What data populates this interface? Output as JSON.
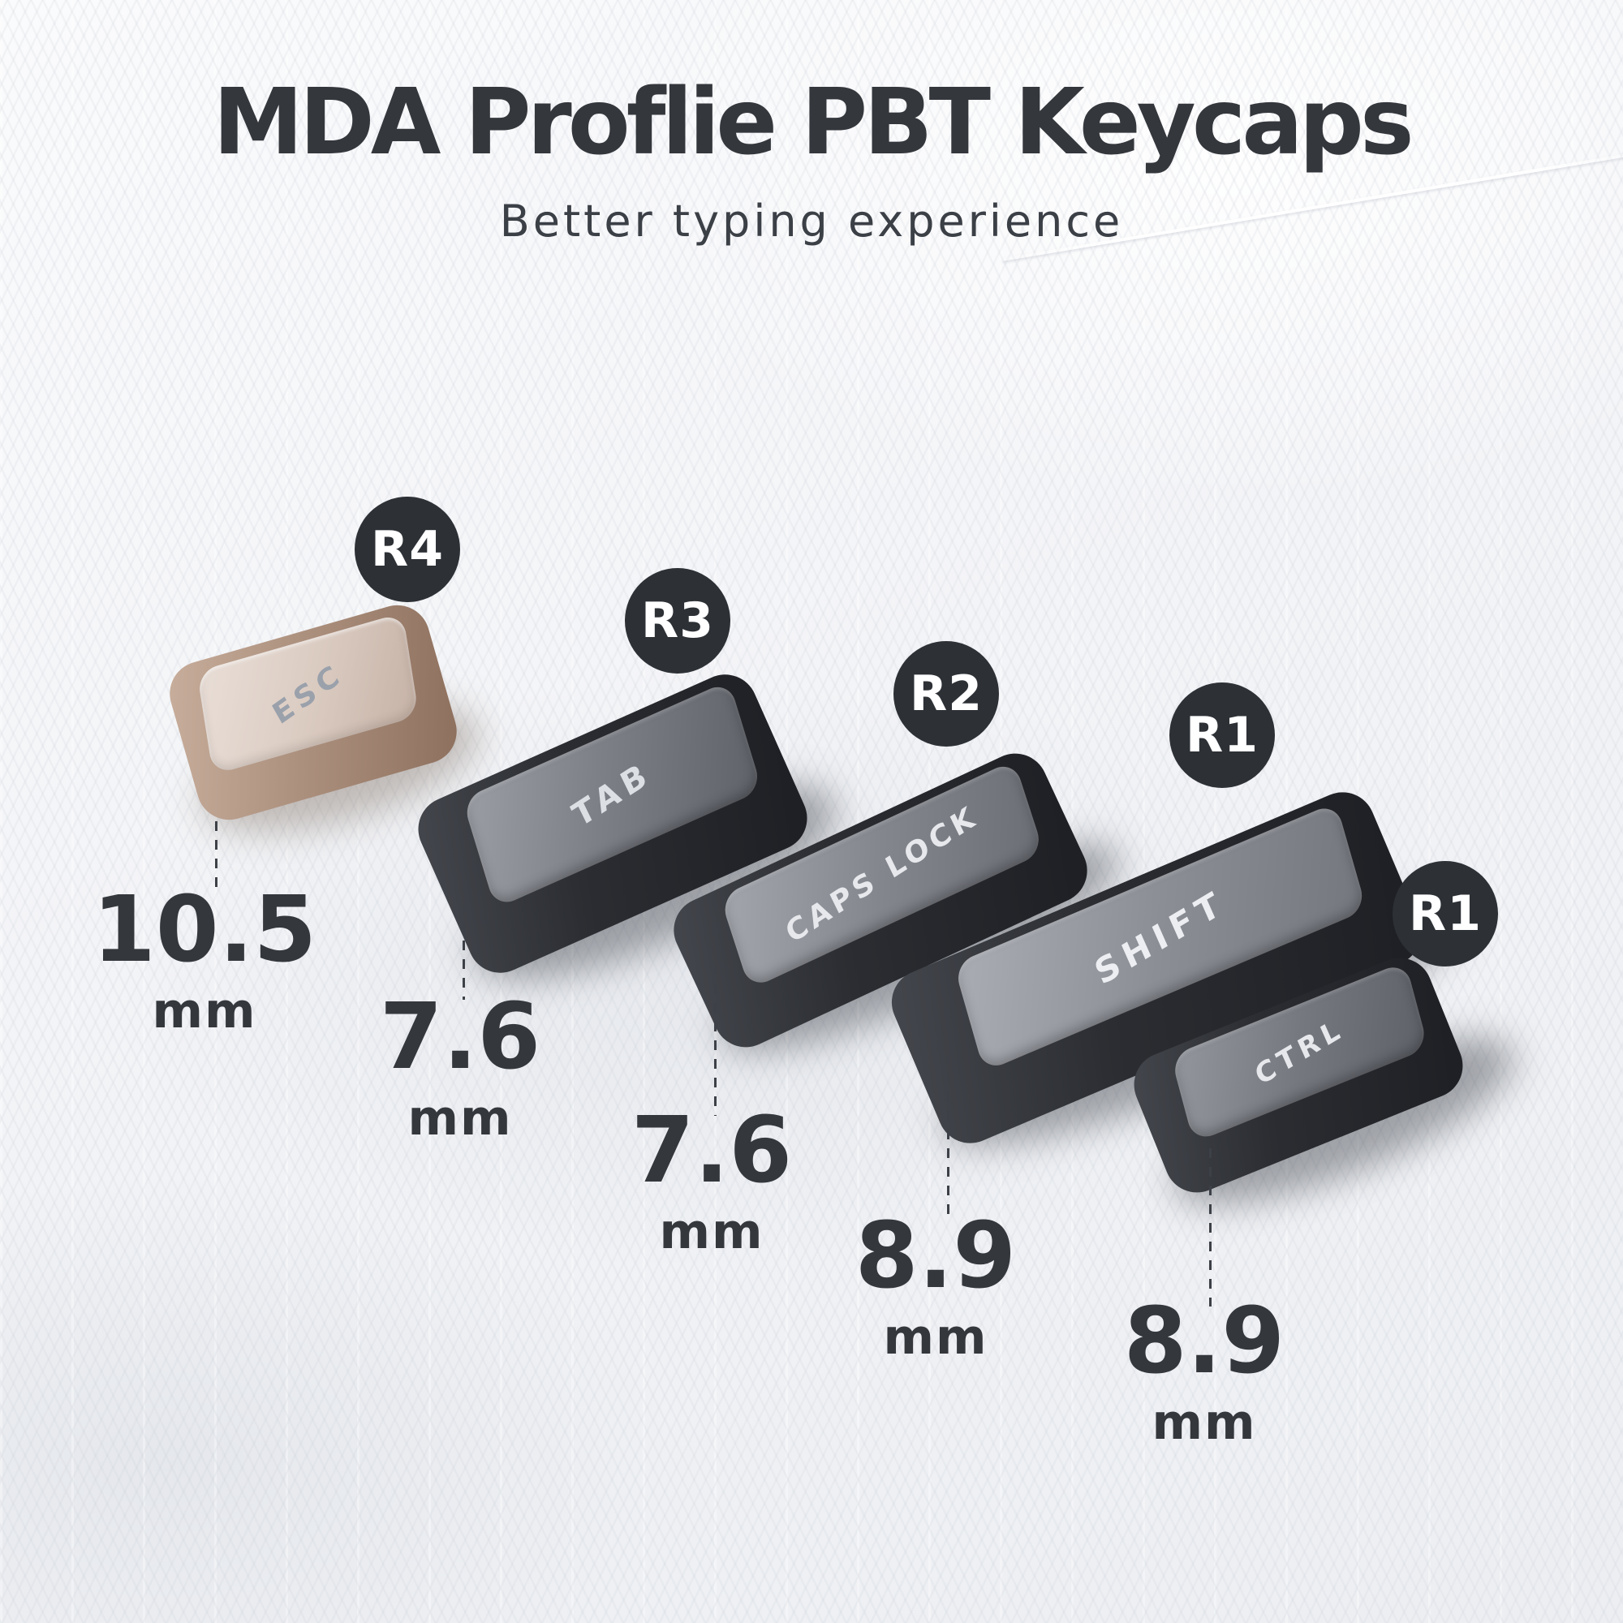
{
  "header": {
    "title": "MDA Proflie PBT Keycaps",
    "subtitle": "Better typing experience"
  },
  "keycaps": [
    {
      "legend": "ESC",
      "row_badge": "R4",
      "height": "10.5",
      "unit": "mm"
    },
    {
      "legend": "TAB",
      "row_badge": "R3",
      "height": "7.6",
      "unit": "mm"
    },
    {
      "legend": "CAPS LOCK",
      "row_badge": "R2",
      "height": "7.6",
      "unit": "mm"
    },
    {
      "legend": "SHIFT",
      "row_badge": "R1",
      "height": "8.9",
      "unit": "mm"
    },
    {
      "legend": "CTRL",
      "row_badge": "R1",
      "height": "8.9",
      "unit": "mm"
    }
  ],
  "colors": {
    "background": "#f2f3f6",
    "text": "#34373c",
    "subtitle_text": "#3b3f46",
    "badge_bg": "#2d3136",
    "badge_text": "#ffffff",
    "dashed_line": "#3d4147",
    "esc_cap_top": "#ddd2ca",
    "esc_cap_side": "#ab8f7e",
    "dark_cap_top": "#8e9198",
    "dark_cap_side": "#26282d"
  }
}
